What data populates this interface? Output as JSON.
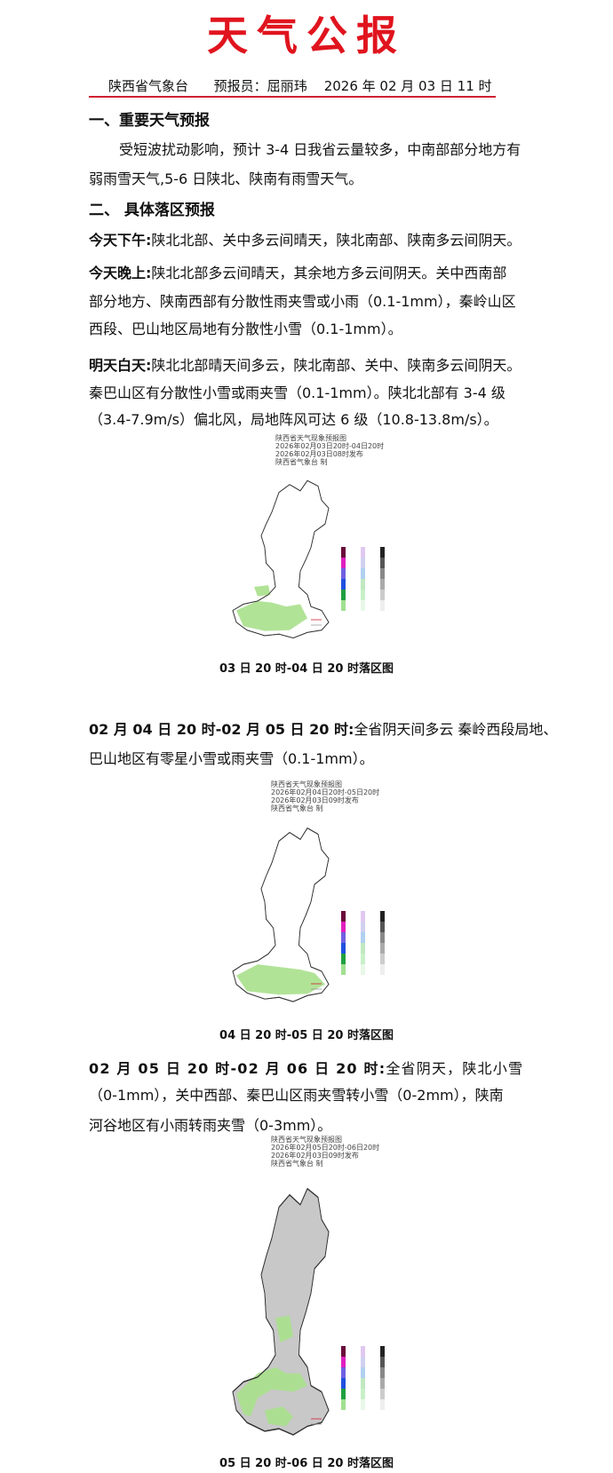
{
  "title": "天气公报",
  "header": {
    "org": "陕西省气象台",
    "forecaster": "预报员：屈丽玮",
    "time": "2026 年 02 月 03 日 11 时"
  },
  "section1": {
    "heading": "一、重要天气预报",
    "lines": [
      "受短波扰动影响，预计 3-4 日我省云量较多，中南部部分地方有",
      "弱雨雪天气,5-6 日陕北、陕南有雨雪天气。"
    ]
  },
  "section2": {
    "heading": "二、  具体落区预报",
    "p1": {
      "label": "今天下午:",
      "lines": [
        "陕北北部、关中多云间晴天，陕北南部、陕南多云间阴天。"
      ]
    },
    "p2": {
      "label": "今天晚上:",
      "lines": [
        "陕北北部多云间晴天，其余地方多云间阴天。关中西南部",
        "部分地方、陕南西部有分散性雨夹雪或小雨（0.1-1mm），秦岭山区",
        "西段、巴山地区局地有分散性小雪（0.1-1mm）。"
      ]
    },
    "p3": {
      "label": "明天白天:",
      "lines": [
        "陕北北部晴天间多云，陕北南部、关中、陕南多云间阴天。",
        "秦巴山区有分散性小雪或雨夹雪（0.1-1mm）。陕北北部有 3-4 级",
        "（3.4-7.9m/s）偏北风，局地阵风可达 6 级（10.8-13.8m/s）。"
      ]
    }
  },
  "maps": [
    {
      "title": "陕西省天气现象预报图",
      "period": "2026年02月03日20时-04日20时",
      "issued": "2026年02月03日08时发布",
      "maker": "陕西省气象台 制",
      "caption": "03 日 20 时-04 日 20 时落区图"
    },
    {
      "title": "陕西省天气现象预报图",
      "period": "2026年02月04日20时-05日20时",
      "issued": "2026年02月03日09时发布",
      "maker": "陕西省气象台 制",
      "caption": "04 日 20 时-05 日 20 时落区图"
    },
    {
      "title": "陕西省天气现象预报图",
      "period": "2026年02月05日20时-06日20时",
      "issued": "2026年02月03日09时发布",
      "maker": "陕西省气象台 制",
      "caption": "05 日 20 时-06 日 20 时落区图"
    }
  ],
  "para4": {
    "label": "02 月 04 日 20 时-02 月 05 日 20 时:",
    "lines": [
      "全省阴天间多云 秦岭西段局地、",
      "巴山地区有零星小雪或雨夹雪（0.1-1mm）。"
    ]
  },
  "para5": {
    "label": "02 月 05 日 20 时-02 月 06 日 20 时:",
    "lines": [
      "全省阴天，陕北小雪",
      "（0-1mm），关中西部、秦巴山区雨夹雪转小雪（0-2mm），陕南",
      "河谷地区有小雨转雨夹雪（0-3mm）。"
    ]
  },
  "colors": {
    "title": "#e0141e",
    "rule": "#d02030",
    "rain_green": "#a8e08c",
    "cloud_gray": "#c8c8c8"
  }
}
